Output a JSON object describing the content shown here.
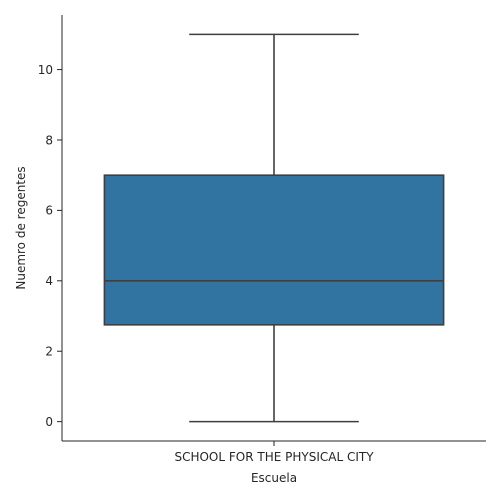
{
  "chart_data": {
    "type": "box",
    "categories": [
      "SCHOOL FOR THE PHYSICAL CITY"
    ],
    "boxes": [
      {
        "category": "SCHOOL FOR THE PHYSICAL CITY",
        "min": 0,
        "q1": 2.75,
        "median": 4,
        "q3": 7,
        "max": 11
      }
    ],
    "xlabel": "Escuela",
    "ylabel": "Nuemro de regentes",
    "ylim": [
      -0.55,
      11.55
    ],
    "yticks": [
      0,
      2,
      4,
      6,
      8,
      10
    ],
    "grid": false,
    "colors": {
      "box_fill": "#3274a1",
      "line": "#3f3f3f",
      "axis": "#262626"
    }
  }
}
